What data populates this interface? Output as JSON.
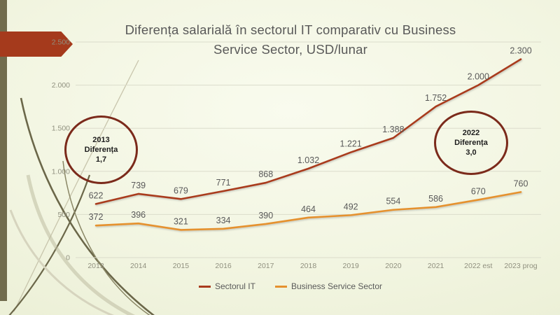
{
  "slide": {
    "title_line1": "Diferența salarială în sectorul IT comparativ cu Business",
    "title_line2": "Service Sector, USD/lunar"
  },
  "chart_data": {
    "type": "line",
    "title": "Diferența salarială în sectorul IT comparativ cu Business Service Sector, USD/lunar",
    "categories": [
      "2013",
      "2014",
      "2015",
      "2016",
      "2017",
      "2018",
      "2019",
      "2020",
      "2021",
      "2022 est",
      "2023 prog"
    ],
    "series": [
      {
        "name": "Sectorul IT",
        "color": "#a93b1e",
        "values": [
          622,
          739,
          679,
          771,
          868,
          1032,
          1221,
          1388,
          1752,
          2000,
          2300
        ],
        "labels": [
          "622",
          "739",
          "679",
          "771",
          "868",
          "1.032",
          "1.221",
          "1.388",
          "1.752",
          "2.000",
          "2.300"
        ]
      },
      {
        "name": "Business Service Sector",
        "color": "#e5912f",
        "values": [
          372,
          396,
          321,
          334,
          390,
          464,
          492,
          554,
          586,
          670,
          760
        ],
        "labels": [
          "372",
          "396",
          "321",
          "334",
          "390",
          "464",
          "492",
          "554",
          "586",
          "670",
          "760"
        ]
      }
    ],
    "y_ticks": [
      "0",
      "500",
      "1.000",
      "1.500",
      "2.000",
      "2.500"
    ],
    "ylim": [
      0,
      2500
    ],
    "grid": true,
    "legend_position": "bottom",
    "xlabel": "",
    "ylabel": ""
  },
  "annotations": [
    {
      "year": "2013",
      "label": "Diferența",
      "value": "1,7"
    },
    {
      "year": "2022",
      "label": "Diferența",
      "value": "3,0"
    }
  ],
  "colors": {
    "accent_red": "#a93b1e",
    "accent_orange": "#e5912f",
    "circle_stroke": "#7b2a1b",
    "banner": "#a53a1c",
    "left_bar": "#716c4d",
    "gridline": "#dbdccb",
    "title_text": "#595959",
    "tick_text": "#90907f"
  }
}
